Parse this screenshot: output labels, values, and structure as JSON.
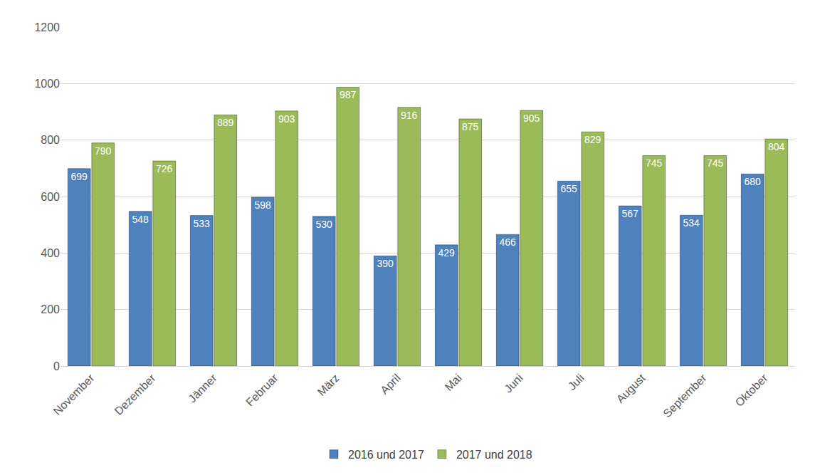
{
  "chart_data": {
    "type": "bar",
    "categories": [
      "November",
      "Dezember",
      "Jänner",
      "Februar",
      "März",
      "April",
      "Mai",
      "Juni",
      "Juli",
      "August",
      "September",
      "Oktober"
    ],
    "series": [
      {
        "name": "2016 und 2017",
        "color": "#4f81bd",
        "values": [
          699,
          548,
          533,
          598,
          530,
          390,
          429,
          466,
          655,
          567,
          534,
          680
        ]
      },
      {
        "name": "2017 und 2018",
        "color": "#9bbb59",
        "values": [
          790,
          726,
          889,
          903,
          987,
          916,
          875,
          905,
          829,
          745,
          745,
          804
        ]
      }
    ],
    "ylim": [
      0,
      1200
    ],
    "yticks": [
      0,
      200,
      400,
      600,
      800,
      1000,
      1200
    ],
    "grid": true,
    "legend": "bottom",
    "data_labels": true
  }
}
